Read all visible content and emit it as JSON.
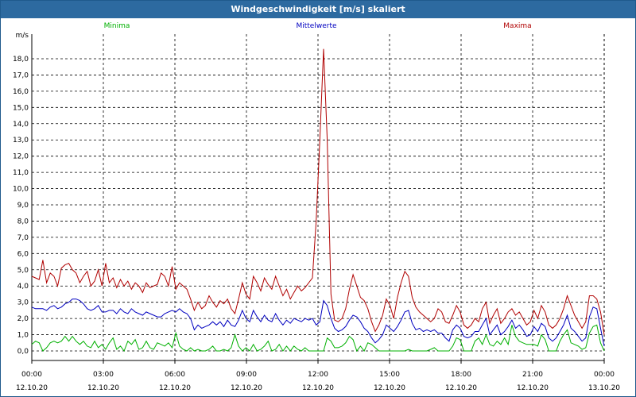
{
  "window": {
    "title": "Windgeschwindigkeit [m/s] skaliert"
  },
  "legend": [
    {
      "label": "Minima",
      "color": "#00b000"
    },
    {
      "label": "Mittelwerte",
      "color": "#0000c0"
    },
    {
      "label": "Maxima",
      "color": "#b00000"
    }
  ],
  "chart_data": {
    "type": "line",
    "title": "Windgeschwindigkeit [m/s] skaliert",
    "ylabel": "m/s",
    "ylim": [
      0,
      18.5
    ],
    "yticks": [
      "0,0",
      "1,0",
      "2,0",
      "3,0",
      "4,0",
      "5,0",
      "6,0",
      "7,0",
      "8,0",
      "9,0",
      "10,0",
      "11,0",
      "12,0",
      "13,0",
      "14,0",
      "15,0",
      "16,0",
      "17,0",
      "18,0"
    ],
    "xlim": [
      0,
      24
    ],
    "xticks": [
      {
        "time": "00:00",
        "date": "12.10.20",
        "x": 0
      },
      {
        "time": "03:00",
        "date": "12.10.20",
        "x": 3
      },
      {
        "time": "06:00",
        "date": "12.10.20",
        "x": 6
      },
      {
        "time": "09:00",
        "date": "12.10.20",
        "x": 9
      },
      {
        "time": "12:00",
        "date": "12.10.20",
        "x": 12
      },
      {
        "time": "15:00",
        "date": "12.10.20",
        "x": 15
      },
      {
        "time": "18:00",
        "date": "12.10.20",
        "x": 18
      },
      {
        "time": "21:00",
        "date": "12.10.20",
        "x": 21
      },
      {
        "time": "00:00",
        "date": "13.10.20",
        "x": 24
      }
    ],
    "grid": true,
    "series": [
      {
        "name": "Maxima",
        "color": "#b00000",
        "values": [
          4.6,
          4.5,
          4.4,
          5.6,
          4.2,
          4.8,
          4.6,
          4.0,
          5.1,
          5.3,
          5.4,
          5.0,
          4.8,
          4.2,
          4.6,
          4.9,
          4.0,
          4.3,
          5.0,
          4.0,
          5.4,
          4.2,
          4.5,
          3.9,
          4.4,
          4.0,
          4.3,
          3.8,
          4.2,
          4.0,
          3.6,
          4.2,
          3.9,
          4.0,
          4.1,
          4.8,
          4.6,
          4.0,
          5.2,
          3.8,
          4.2,
          4.0,
          3.8,
          3.2,
          2.5,
          3.0,
          2.6,
          2.8,
          3.4,
          3.0,
          2.7,
          3.1,
          2.9,
          3.2,
          2.6,
          2.3,
          3.2,
          4.2,
          3.5,
          3.2,
          4.6,
          4.2,
          3.7,
          4.5,
          4.1,
          3.8,
          4.6,
          4.0,
          3.4,
          3.8,
          3.2,
          3.6,
          4.0,
          3.7,
          3.9,
          4.2,
          4.5,
          8.0,
          13.0,
          18.6,
          13.0,
          3.5,
          1.9,
          1.8,
          2.0,
          2.6,
          3.8,
          4.7,
          4.0,
          3.3,
          3.1,
          2.6,
          1.8,
          1.2,
          1.6,
          2.2,
          3.2,
          2.8,
          2.0,
          3.3,
          4.2,
          4.9,
          4.6,
          3.3,
          2.7,
          2.4,
          2.2,
          2.0,
          1.8,
          2.0,
          2.6,
          2.4,
          1.8,
          1.7,
          2.2,
          2.8,
          2.4,
          1.6,
          1.4,
          1.6,
          2.0,
          1.8,
          2.6,
          3.0,
          1.7,
          2.2,
          2.6,
          1.7,
          2.0,
          2.4,
          2.6,
          2.2,
          2.4,
          2.0,
          1.6,
          1.8,
          2.5,
          2.0,
          2.8,
          2.4,
          1.6,
          1.4,
          1.6,
          2.0,
          2.6,
          3.4,
          2.8,
          2.2,
          1.8,
          1.4,
          1.8,
          3.4,
          3.4,
          3.2,
          2.4,
          1.0
        ]
      },
      {
        "name": "Mittelwerte",
        "color": "#0000c0",
        "values": [
          2.7,
          2.6,
          2.6,
          2.6,
          2.5,
          2.7,
          2.8,
          2.6,
          2.7,
          2.9,
          3.0,
          3.2,
          3.2,
          3.1,
          2.9,
          2.6,
          2.5,
          2.6,
          2.8,
          2.4,
          2.4,
          2.5,
          2.5,
          2.3,
          2.6,
          2.4,
          2.3,
          2.6,
          2.4,
          2.3,
          2.2,
          2.4,
          2.3,
          2.2,
          2.1,
          2.1,
          2.3,
          2.4,
          2.5,
          2.4,
          2.6,
          2.4,
          2.3,
          2.0,
          1.3,
          1.6,
          1.4,
          1.5,
          1.6,
          1.8,
          1.6,
          1.8,
          1.5,
          1.9,
          1.6,
          1.5,
          1.9,
          2.5,
          2.0,
          1.8,
          2.5,
          2.1,
          1.8,
          2.2,
          1.9,
          1.8,
          2.3,
          1.9,
          1.6,
          1.9,
          1.7,
          2.0,
          1.9,
          1.8,
          2.0,
          1.9,
          2.0,
          1.6,
          1.8,
          3.1,
          2.8,
          2.0,
          1.4,
          1.2,
          1.3,
          1.5,
          1.9,
          2.2,
          2.1,
          1.8,
          1.4,
          1.2,
          0.8,
          0.5,
          0.7,
          1.0,
          1.6,
          1.4,
          1.2,
          1.5,
          1.9,
          2.4,
          2.5,
          1.7,
          1.3,
          1.4,
          1.2,
          1.3,
          1.2,
          1.3,
          1.1,
          1.1,
          0.8,
          0.6,
          1.3,
          1.6,
          1.4,
          0.9,
          0.8,
          0.9,
          1.2,
          1.2,
          1.6,
          2.0,
          1.0,
          1.3,
          1.6,
          1.0,
          1.2,
          1.5,
          1.9,
          1.4,
          1.6,
          1.3,
          0.9,
          1.0,
          1.5,
          1.2,
          1.7,
          1.5,
          0.8,
          0.6,
          0.8,
          1.2,
          1.6,
          2.2,
          1.4,
          1.2,
          0.9,
          0.6,
          0.8,
          2.1,
          2.7,
          2.6,
          1.4,
          0.3
        ]
      },
      {
        "name": "Minima",
        "color": "#00b000",
        "values": [
          0.4,
          0.6,
          0.5,
          0.0,
          0.2,
          0.5,
          0.6,
          0.5,
          0.6,
          0.9,
          0.6,
          0.9,
          0.6,
          0.4,
          0.6,
          0.3,
          0.2,
          0.6,
          0.2,
          0.4,
          0.1,
          0.5,
          0.8,
          0.1,
          0.3,
          0.0,
          0.6,
          0.4,
          0.7,
          0.1,
          0.2,
          0.6,
          0.2,
          0.1,
          0.5,
          0.4,
          0.3,
          0.5,
          0.2,
          1.1,
          0.3,
          0.1,
          0.0,
          0.2,
          0.0,
          0.1,
          0.0,
          0.0,
          0.1,
          0.3,
          0.0,
          0.0,
          0.1,
          0.0,
          0.2,
          1.0,
          0.3,
          0.0,
          0.2,
          0.0,
          0.4,
          0.0,
          0.1,
          0.3,
          0.6,
          0.0,
          0.1,
          0.4,
          0.0,
          0.3,
          0.0,
          0.3,
          0.1,
          0.0,
          0.2,
          0.0,
          0.0,
          0.0,
          0.0,
          0.0,
          0.8,
          0.6,
          0.2,
          0.2,
          0.3,
          0.5,
          0.9,
          0.7,
          0.0,
          0.3,
          0.0,
          0.5,
          0.4,
          0.2,
          0.0,
          0.0,
          0.0,
          0.0,
          0.0,
          0.0,
          0.0,
          0.0,
          0.1,
          0.0,
          0.0,
          0.0,
          0.0,
          0.0,
          0.1,
          0.2,
          0.0,
          0.0,
          0.0,
          0.0,
          0.3,
          0.8,
          0.7,
          0.0,
          0.0,
          0.0,
          0.6,
          0.8,
          0.4,
          1.0,
          0.4,
          0.3,
          0.6,
          0.4,
          0.8,
          0.4,
          1.6,
          0.9,
          0.6,
          0.5,
          0.4,
          0.4,
          0.4,
          0.3,
          1.0,
          0.7,
          0.0,
          0.0,
          0.0,
          0.6,
          1.0,
          1.3,
          0.5,
          0.4,
          0.3,
          0.1,
          0.2,
          1.1,
          1.5,
          1.6,
          0.5,
          0.0
        ]
      }
    ]
  }
}
